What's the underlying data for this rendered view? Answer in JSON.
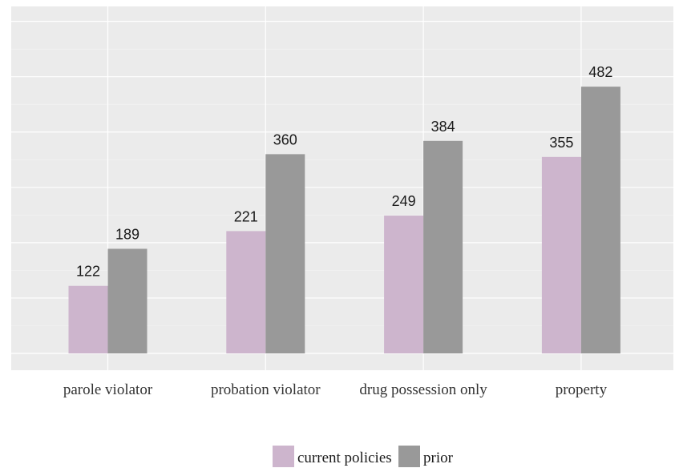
{
  "chart_data": {
    "type": "bar",
    "categories": [
      "parole violator",
      "probation violator",
      "drug possession only",
      "property"
    ],
    "series": [
      {
        "name": "current policies",
        "values": [
          122,
          221,
          249,
          355
        ],
        "color": "#cdb5cd"
      },
      {
        "name": "prior",
        "values": [
          189,
          360,
          384,
          482
        ],
        "color": "#999999"
      }
    ],
    "title": "",
    "xlabel": "",
    "ylabel": "",
    "ylim": [
      0,
      600
    ],
    "grid": true,
    "y_tick_labels_shown": false,
    "panel_background": "#ebebeb",
    "legend_position": "bottom"
  }
}
